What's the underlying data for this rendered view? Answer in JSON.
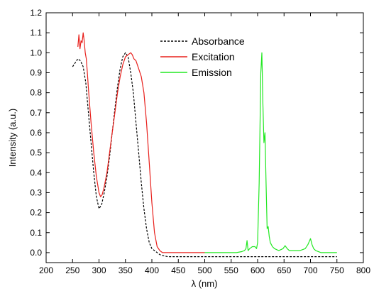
{
  "chart_data": {
    "type": "line",
    "xlabel": "λ (nm)",
    "ylabel": "Intensity (a.u.)",
    "xlim": [
      200,
      800
    ],
    "ylim": [
      -0.05,
      1.2
    ],
    "xticks": [
      200,
      250,
      300,
      350,
      400,
      450,
      500,
      550,
      600,
      650,
      700,
      750,
      800
    ],
    "yticks": [
      0.0,
      0.1,
      0.2,
      0.3,
      0.4,
      0.5,
      0.6,
      0.7,
      0.8,
      0.9,
      1.0,
      1.1,
      1.2
    ],
    "ytick_labels": [
      "0.0",
      "0.1",
      "0.2",
      "0.3",
      "0.4",
      "0.5",
      "0.6",
      "0.7",
      "0.8",
      "0.9",
      "1.0",
      "1.1",
      "1.2"
    ],
    "legend_position": "top-center",
    "series": [
      {
        "name": "Absorbance",
        "color": "#000000",
        "style": "dashed",
        "x": [
          250,
          255,
          260,
          265,
          270,
          275,
          280,
          285,
          290,
          295,
          300,
          305,
          310,
          315,
          320,
          325,
          330,
          335,
          340,
          345,
          350,
          355,
          360,
          365,
          370,
          375,
          380,
          385,
          390,
          395,
          400,
          405,
          410,
          415,
          420,
          430,
          450,
          500,
          550,
          600,
          650,
          700,
          750
        ],
        "y": [
          0.93,
          0.95,
          0.97,
          0.96,
          0.93,
          0.85,
          0.7,
          0.55,
          0.4,
          0.28,
          0.22,
          0.24,
          0.3,
          0.38,
          0.48,
          0.6,
          0.72,
          0.83,
          0.92,
          0.98,
          1.0,
          0.98,
          0.9,
          0.8,
          0.65,
          0.5,
          0.35,
          0.22,
          0.12,
          0.05,
          0.02,
          0.01,
          0.0,
          -0.01,
          -0.015,
          -0.02,
          -0.02,
          -0.02,
          -0.02,
          -0.02,
          -0.02,
          -0.02,
          -0.02
        ]
      },
      {
        "name": "Excitation",
        "color": "#e8201c",
        "style": "solid",
        "x": [
          260,
          262,
          264,
          266,
          268,
          270,
          272,
          274,
          276,
          278,
          280,
          285,
          290,
          295,
          300,
          303,
          306,
          310,
          315,
          320,
          325,
          330,
          335,
          340,
          345,
          350,
          355,
          360,
          363,
          366,
          370,
          375,
          380,
          385,
          390,
          395,
          400,
          405,
          410,
          415,
          420,
          430,
          450,
          480,
          500
        ],
        "y": [
          1.03,
          1.09,
          1.02,
          1.06,
          1.05,
          1.1,
          1.06,
          1.0,
          0.97,
          0.9,
          0.82,
          0.65,
          0.5,
          0.38,
          0.3,
          0.28,
          0.29,
          0.33,
          0.4,
          0.5,
          0.6,
          0.7,
          0.8,
          0.88,
          0.94,
          0.98,
          0.99,
          1.0,
          0.99,
          0.97,
          0.96,
          0.92,
          0.88,
          0.8,
          0.65,
          0.45,
          0.25,
          0.1,
          0.03,
          0.01,
          0.0,
          0.0,
          0.0,
          0.0,
          0.0
        ]
      },
      {
        "name": "Emission",
        "color": "#22e822",
        "style": "solid",
        "x": [
          500,
          520,
          540,
          560,
          570,
          575,
          578,
          580,
          582,
          585,
          590,
          595,
          598,
          600,
          603,
          606,
          608,
          610,
          612,
          614,
          616,
          618,
          620,
          622,
          624,
          626,
          628,
          632,
          640,
          648,
          652,
          656,
          660,
          670,
          680,
          690,
          695,
          700,
          703,
          706,
          710,
          720,
          730,
          740,
          750
        ],
        "y": [
          0.0,
          0.0,
          0.0,
          0.0,
          0.005,
          0.01,
          0.02,
          0.06,
          0.01,
          0.02,
          0.03,
          0.03,
          0.02,
          0.05,
          0.35,
          0.9,
          1.0,
          0.75,
          0.55,
          0.6,
          0.35,
          0.12,
          0.13,
          0.08,
          0.05,
          0.04,
          0.03,
          0.02,
          0.01,
          0.02,
          0.035,
          0.02,
          0.01,
          0.01,
          0.01,
          0.02,
          0.04,
          0.07,
          0.04,
          0.02,
          0.01,
          0.0,
          0.0,
          0.0,
          0.0
        ]
      }
    ]
  }
}
